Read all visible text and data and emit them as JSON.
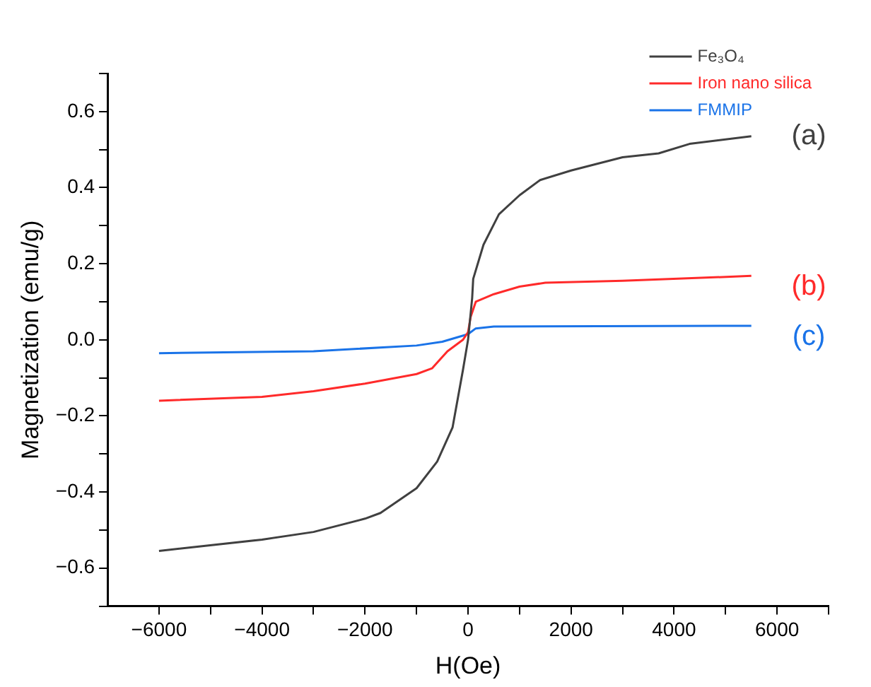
{
  "chart_data": {
    "type": "line",
    "xlabel": "H(Oe)",
    "ylabel": "Magnetization (emu/g)",
    "xlim": [
      -7000,
      7000
    ],
    "xticks": [
      -6000,
      {
        "value": -5000,
        "label": null
      },
      -4000,
      {
        "value": -3000,
        "label": null
      },
      -2000,
      {
        "value": -1000,
        "label": null
      },
      0,
      {
        "value": 1000,
        "label": null
      },
      2000,
      {
        "value": 3000,
        "label": null
      },
      4000,
      {
        "value": 5000,
        "label": null
      },
      6000,
      {
        "value": 7000,
        "label": null
      }
    ],
    "ylim": [
      -0.7,
      0.7
    ],
    "yticks": [
      {
        "value": -0.7,
        "label": null
      },
      -0.6,
      {
        "value": -0.5,
        "label": null
      },
      -0.4,
      {
        "value": -0.3,
        "label": null
      },
      -0.2,
      {
        "value": -0.1,
        "label": null
      },
      {
        "value": 0,
        "label": "0.0"
      },
      {
        "value": 0.1,
        "label": null
      },
      0.2,
      {
        "value": 0.3,
        "label": null
      },
      0.4,
      {
        "value": 0.5,
        "label": null
      },
      0.6,
      {
        "value": 0.7,
        "label": null
      }
    ],
    "grid": false,
    "legend": "top right",
    "marker": "none",
    "line_style": "solid",
    "series": [
      {
        "name": "Fe₃O₄",
        "color": "#404040",
        "x": [
          -6000,
          -4000,
          -3000,
          -2000,
          -1700,
          -1000,
          -600,
          -300,
          -100,
          0,
          80,
          100,
          300,
          600,
          1000,
          1400,
          2000,
          3000,
          3700,
          4300,
          5500
        ],
        "values": [
          -0.555,
          -0.525,
          -0.505,
          -0.47,
          -0.455,
          -0.39,
          -0.32,
          -0.23,
          -0.08,
          0.0,
          0.11,
          0.16,
          0.25,
          0.33,
          0.38,
          0.42,
          0.445,
          0.48,
          0.49,
          0.515,
          0.535
        ]
      },
      {
        "name": "Iron nano silica",
        "color": "#ff2a2a",
        "x": [
          -6000,
          -4000,
          -3000,
          -2000,
          -1000,
          -700,
          -400,
          -100,
          0,
          50,
          150,
          500,
          1000,
          1500,
          3000,
          5500
        ],
        "values": [
          -0.16,
          -0.15,
          -0.135,
          -0.115,
          -0.09,
          -0.075,
          -0.03,
          0.0,
          0.02,
          0.06,
          0.1,
          0.12,
          0.14,
          0.15,
          0.155,
          0.168
        ]
      },
      {
        "name": "FMMIP",
        "color": "#1a73e8",
        "x": [
          -6000,
          -3000,
          -1000,
          -500,
          0,
          150,
          500,
          5500
        ],
        "values": [
          -0.035,
          -0.03,
          -0.015,
          -0.005,
          0.015,
          0.03,
          0.035,
          0.037
        ]
      }
    ],
    "annotations": [
      "(a)",
      "(b)",
      "(c)"
    ]
  }
}
